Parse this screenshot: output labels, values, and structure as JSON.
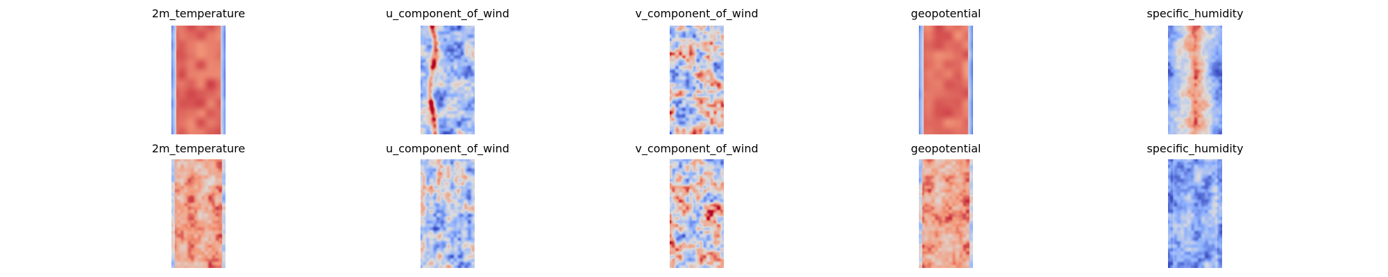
{
  "figure": {
    "rows": [
      {
        "row_id": "row-1",
        "panels": [
          {
            "title": "2m_temperature"
          },
          {
            "title": "u_component_of_wind"
          },
          {
            "title": "v_component_of_wind"
          },
          {
            "title": "geopotential"
          },
          {
            "title": "specific_humidity"
          }
        ]
      },
      {
        "row_id": "row-2",
        "panels": [
          {
            "title": "2m_temperature"
          },
          {
            "title": "u_component_of_wind"
          },
          {
            "title": "v_component_of_wind"
          },
          {
            "title": "geopotential"
          },
          {
            "title": "specific_humidity"
          }
        ]
      }
    ]
  },
  "chart_data": [
    {
      "type": "heatmap",
      "title": "2m_temperature",
      "colormap": "coolwarm",
      "axes_visible": false,
      "pattern": "warm-core-cold-edges"
    },
    {
      "type": "heatmap",
      "title": "u_component_of_wind",
      "colormap": "coolwarm",
      "axes_visible": false,
      "pattern": "cool-streaks-with-warm-band"
    },
    {
      "type": "heatmap",
      "title": "v_component_of_wind",
      "colormap": "coolwarm",
      "axes_visible": false,
      "pattern": "mixed-speckle"
    },
    {
      "type": "heatmap",
      "title": "geopotential",
      "colormap": "coolwarm",
      "axes_visible": false,
      "pattern": "warm-core-cold-edges"
    },
    {
      "type": "heatmap",
      "title": "specific_humidity",
      "colormap": "coolwarm",
      "axes_visible": false,
      "pattern": "warm-center-cold-sides"
    },
    {
      "type": "heatmap",
      "title": "2m_temperature",
      "colormap": "coolwarm",
      "axes_visible": false,
      "pattern": "mostly-warm"
    },
    {
      "type": "heatmap",
      "title": "u_component_of_wind",
      "colormap": "coolwarm",
      "axes_visible": false,
      "pattern": "cool-streaks"
    },
    {
      "type": "heatmap",
      "title": "v_component_of_wind",
      "colormap": "coolwarm",
      "axes_visible": false,
      "pattern": "mixed-speckle"
    },
    {
      "type": "heatmap",
      "title": "geopotential",
      "colormap": "coolwarm",
      "axes_visible": false,
      "pattern": "mostly-warm"
    },
    {
      "type": "heatmap",
      "title": "specific_humidity",
      "colormap": "coolwarm",
      "axes_visible": false,
      "pattern": "mostly-cool"
    }
  ],
  "colors": {
    "cold": "#3b4cc0",
    "neutral": "#dddddd",
    "warm": "#b40426"
  }
}
